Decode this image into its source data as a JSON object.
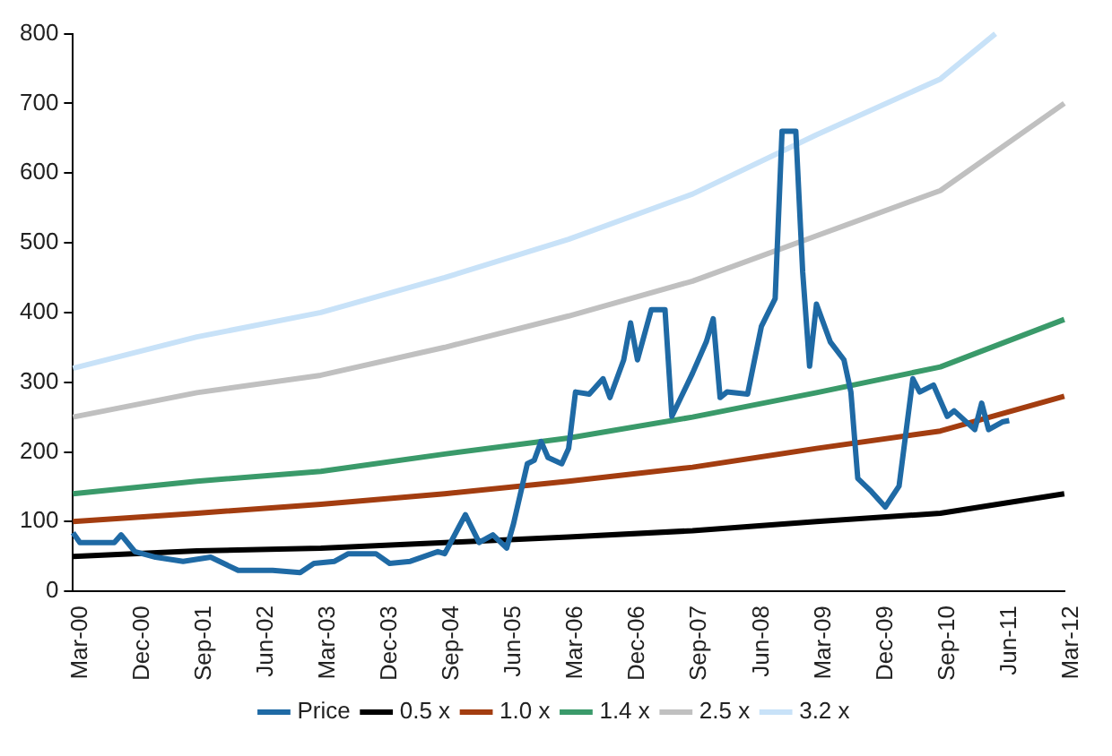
{
  "chart_data": {
    "type": "line",
    "xlim": [
      "2000-03",
      "2012-03"
    ],
    "xticks": [
      {
        "value": "2000-03",
        "label": "Mar-00"
      },
      {
        "value": "2000-12",
        "label": "Dec-00"
      },
      {
        "value": "2001-09",
        "label": "Sep-01"
      },
      {
        "value": "2002-06",
        "label": "Jun-02"
      },
      {
        "value": "2003-03",
        "label": "Mar-03"
      },
      {
        "value": "2003-12",
        "label": "Dec-03"
      },
      {
        "value": "2004-09",
        "label": "Sep-04"
      },
      {
        "value": "2005-06",
        "label": "Jun-05"
      },
      {
        "value": "2006-03",
        "label": "Mar-06"
      },
      {
        "value": "2006-12",
        "label": "Dec-06"
      },
      {
        "value": "2007-09",
        "label": "Sep-07"
      },
      {
        "value": "2008-06",
        "label": "Jun-08"
      },
      {
        "value": "2009-03",
        "label": "Mar-09"
      },
      {
        "value": "2009-12",
        "label": "Dec-09"
      },
      {
        "value": "2010-09",
        "label": "Sep-10"
      },
      {
        "value": "2011-06",
        "label": "Jun-11"
      },
      {
        "value": "2012-03",
        "label": "Mar-12"
      }
    ],
    "ylim": [
      0,
      800
    ],
    "yticks": [
      0,
      100,
      200,
      300,
      400,
      500,
      600,
      700,
      800
    ],
    "grid": false,
    "legend": "bottom",
    "marker": "none",
    "line_style": "solid",
    "series": [
      {
        "name": "Price",
        "color": "#1f6aa5",
        "x": [
          "2000-03",
          "2000-04",
          "2000-09",
          "2000-10",
          "2000-12",
          "2001-03",
          "2001-07",
          "2001-11",
          "2002-03",
          "2002-08",
          "2002-12",
          "2003-02",
          "2003-05",
          "2003-07",
          "2003-11",
          "2004-01",
          "2004-04",
          "2004-08",
          "2004-09",
          "2004-12",
          "2005-02",
          "2005-04",
          "2005-06",
          "2005-07",
          "2005-09",
          "2005-10",
          "2005-11",
          "2005-12",
          "2006-02",
          "2006-03",
          "2006-04",
          "2006-06",
          "2006-08",
          "2006-09",
          "2006-11",
          "2006-12",
          "2007-01",
          "2007-03",
          "2007-05",
          "2007-06",
          "2007-09",
          "2007-11",
          "2007-12",
          "2008-01",
          "2008-02",
          "2008-05",
          "2008-06",
          "2008-07",
          "2008-09",
          "2008-10",
          "2008-12",
          "2009-01",
          "2009-02",
          "2009-03",
          "2009-05",
          "2009-07",
          "2009-08",
          "2009-09",
          "2009-11",
          "2010-01",
          "2010-03",
          "2010-05",
          "2010-06",
          "2010-08",
          "2010-10",
          "2010-11",
          "2011-02",
          "2011-03",
          "2011-04",
          "2011-06",
          "2011-07"
        ],
        "values": [
          84,
          70,
          70,
          81,
          57,
          49,
          43,
          49,
          30,
          30,
          27,
          40,
          43,
          54,
          54,
          40,
          43,
          57,
          54,
          110,
          70,
          81,
          62,
          97,
          183,
          188,
          215,
          192,
          183,
          205,
          286,
          283,
          305,
          278,
          332,
          385,
          332,
          404,
          404,
          251,
          313,
          358,
          391,
          278,
          286,
          283,
          332,
          380,
          420,
          660,
          660,
          458,
          323,
          412,
          358,
          332,
          286,
          162,
          143,
          121,
          151,
          305,
          286,
          296,
          251,
          259,
          232,
          270,
          232,
          243,
          245
        ]
      },
      {
        "name": "0.5 x",
        "color": "#000000",
        "x": [
          "2000-03",
          "2001-09",
          "2003-03",
          "2004-09",
          "2006-03",
          "2007-09",
          "2009-03",
          "2010-09",
          "2012-03"
        ],
        "values": [
          50,
          58,
          62,
          70,
          78,
          87,
          100,
          112,
          140
        ]
      },
      {
        "name": "1.0 x",
        "color": "#a33d10",
        "x": [
          "2000-03",
          "2001-09",
          "2003-03",
          "2004-09",
          "2006-03",
          "2007-09",
          "2009-03",
          "2010-09",
          "2012-03"
        ],
        "values": [
          100,
          112,
          125,
          140,
          158,
          178,
          205,
          230,
          280
        ]
      },
      {
        "name": "1.4 x",
        "color": "#3a9a6a",
        "x": [
          "2000-03",
          "2001-09",
          "2003-03",
          "2004-09",
          "2006-03",
          "2007-09",
          "2009-03",
          "2010-09",
          "2012-03"
        ],
        "values": [
          140,
          158,
          172,
          197,
          220,
          250,
          285,
          322,
          390
        ]
      },
      {
        "name": "2.5 x",
        "color": "#c0c0c0",
        "x": [
          "2000-03",
          "2001-09",
          "2003-03",
          "2004-09",
          "2006-03",
          "2007-09",
          "2009-03",
          "2010-09",
          "2012-03"
        ],
        "values": [
          250,
          285,
          310,
          350,
          395,
          445,
          510,
          575,
          700
        ]
      },
      {
        "name": "3.2 x",
        "color": "#c8e2f8",
        "x": [
          "2000-03",
          "2001-09",
          "2003-03",
          "2004-09",
          "2006-03",
          "2007-09",
          "2009-03",
          "2010-09",
          "2011-05"
        ],
        "values": [
          320,
          365,
          400,
          450,
          505,
          570,
          655,
          735,
          800
        ]
      }
    ]
  }
}
